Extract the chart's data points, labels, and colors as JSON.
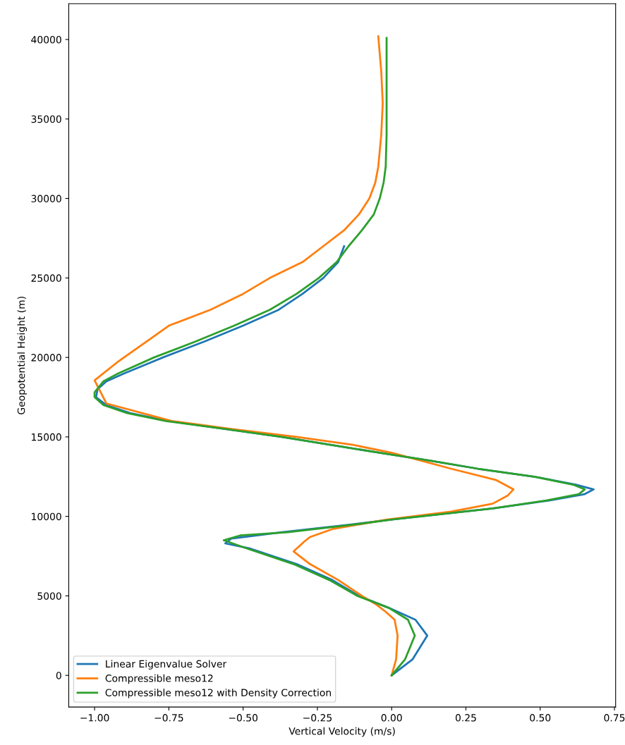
{
  "chart_data": {
    "type": "line",
    "xlabel": "Vertical Velocity (m/s)",
    "ylabel": "Geopotential Height (m)",
    "xlim": [
      -1.087,
      0.754
    ],
    "xticks": [
      {
        "value": -1.0,
        "label": "−1.00"
      },
      {
        "value": -0.75,
        "label": "−0.75"
      },
      {
        "value": -0.5,
        "label": "−0.50"
      },
      {
        "value": -0.25,
        "label": "−0.25"
      },
      {
        "value": 0,
        "label": "0.00"
      },
      {
        "value": 0.25,
        "label": "0.25"
      },
      {
        "value": 0.5,
        "label": "0.50"
      },
      {
        "value": 0.75,
        "label": "0.75"
      }
    ],
    "ylim": [
      -1990,
      42250
    ],
    "yticks": [
      0,
      5000,
      10000,
      15000,
      20000,
      25000,
      30000,
      35000,
      40000
    ],
    "grid": false,
    "legend": "bottom left",
    "line_style": "solid",
    "marker": "none",
    "series": [
      {
        "name": "Linear Eigenvalue Solver",
        "color": "#1f77b4",
        "x": [
          0.0,
          0.07,
          0.12,
          0.08,
          -0.01,
          -0.11,
          -0.2,
          -0.32,
          -0.48,
          -0.56,
          -0.54,
          -0.37,
          -0.13,
          0.0,
          0.34,
          0.53,
          0.65,
          0.68,
          0.62,
          0.48,
          0.29,
          0.13,
          -0.04,
          -0.37,
          -0.56,
          -0.75,
          -0.88,
          -0.96,
          -0.995,
          -0.99,
          -0.96,
          -0.9,
          -0.77,
          -0.63,
          -0.5,
          -0.38,
          -0.3,
          -0.23,
          -0.18,
          -0.16
        ],
        "values": [
          0,
          1000,
          2500,
          3500,
          4250,
          5000,
          6000,
          7000,
          8000,
          8300,
          8600,
          9000,
          9500,
          9800,
          10500,
          11000,
          11400,
          11700,
          12000,
          12500,
          13000,
          13500,
          14000,
          15000,
          15500,
          16000,
          16500,
          17000,
          17500,
          18000,
          18500,
          19000,
          20000,
          21000,
          22000,
          23000,
          24000,
          25000,
          26000,
          27000
        ]
      },
      {
        "name": "Compressible meso12",
        "color": "#ff7f0e",
        "x": [
          0.0,
          0.015,
          0.02,
          0.01,
          -0.02,
          -0.055,
          -0.1,
          -0.18,
          -0.275,
          -0.33,
          -0.295,
          -0.275,
          -0.2,
          -0.015,
          0.2,
          0.34,
          0.39,
          0.41,
          0.35,
          0.2,
          0.0,
          -0.13,
          -0.32,
          -0.54,
          -0.74,
          -0.96,
          -1.0,
          -0.92,
          -0.81,
          -0.75,
          -0.61,
          -0.5,
          -0.41,
          -0.3,
          -0.23,
          -0.16,
          -0.11,
          -0.075,
          -0.055,
          -0.045,
          -0.035,
          -0.03,
          -0.035,
          -0.045
        ],
        "values": [
          0,
          1000,
          2500,
          3500,
          4000,
          4500,
          5000,
          6000,
          7000,
          7800,
          8400,
          8700,
          9200,
          9800,
          10300,
          10800,
          11300,
          11700,
          12300,
          13000,
          14000,
          14500,
          15000,
          15500,
          16000,
          17100,
          18560,
          19750,
          21200,
          22000,
          23000,
          24000,
          25000,
          26000,
          27000,
          28000,
          29000,
          30000,
          31000,
          32000,
          34000,
          36000,
          38000,
          40200
        ]
      },
      {
        "name": "Compressible meso12 with Density Correction",
        "color": "#2ca02c",
        "x": [
          0.0,
          0.045,
          0.078,
          0.055,
          -0.01,
          -0.115,
          -0.21,
          -0.33,
          -0.49,
          -0.565,
          -0.51,
          -0.35,
          -0.12,
          0.0,
          0.34,
          0.52,
          0.63,
          0.65,
          0.61,
          0.48,
          0.29,
          0.13,
          -0.04,
          -0.37,
          -0.56,
          -0.76,
          -0.89,
          -0.97,
          -1.0,
          -1.0,
          -0.97,
          -0.92,
          -0.8,
          -0.66,
          -0.53,
          -0.41,
          -0.32,
          -0.245,
          -0.185,
          -0.145,
          -0.1,
          -0.06,
          -0.04,
          -0.027,
          -0.02,
          -0.017,
          -0.017,
          -0.017
        ],
        "values": [
          0,
          1000,
          2500,
          3500,
          4250,
          5000,
          6000,
          7000,
          8000,
          8500,
          8800,
          9000,
          9500,
          9800,
          10500,
          11000,
          11400,
          11700,
          12000,
          12500,
          13000,
          13500,
          14000,
          15000,
          15500,
          16000,
          16500,
          17000,
          17500,
          17800,
          18500,
          19000,
          20000,
          21000,
          22000,
          23000,
          24000,
          25000,
          26000,
          27000,
          28000,
          29000,
          30000,
          31000,
          32000,
          34000,
          36000,
          40100
        ]
      }
    ]
  }
}
